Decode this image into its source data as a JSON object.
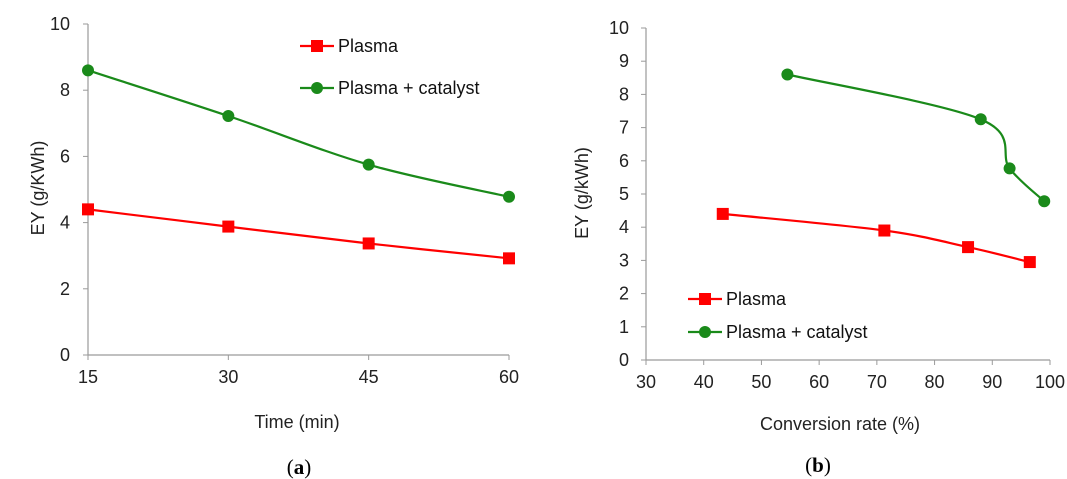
{
  "chart_data": [
    {
      "type": "line",
      "caption": {
        "open": "(",
        "letter": "a",
        "close": ")"
      },
      "xlabel": "Time (min)",
      "ylabel": "EY (g/KWh)",
      "xlim": [
        15,
        60
      ],
      "ylim": [
        0,
        10
      ],
      "xticks": [
        15,
        30,
        45,
        60
      ],
      "yticks": [
        0,
        2,
        4,
        6,
        8,
        10
      ],
      "legend_position": "top-right",
      "series": [
        {
          "name": "Plasma",
          "color": "#ff0000",
          "marker": "square",
          "x": [
            15,
            30,
            45,
            60
          ],
          "y": [
            4.4,
            3.88,
            3.37,
            2.92
          ]
        },
        {
          "name": "Plasma + catalyst",
          "color": "#1a8a1a",
          "marker": "circle",
          "x": [
            15,
            30,
            45,
            60
          ],
          "y": [
            8.6,
            7.22,
            5.75,
            4.78
          ]
        }
      ]
    },
    {
      "type": "line",
      "caption": {
        "open": "(",
        "letter": "b",
        "close": ")"
      },
      "xlabel": "Conversion rate (%)",
      "ylabel": "EY (g/kWh)",
      "xlim": [
        30,
        100
      ],
      "ylim": [
        0,
        10
      ],
      "xticks": [
        30,
        40,
        50,
        60,
        70,
        80,
        90,
        100
      ],
      "yticks": [
        0,
        1,
        2,
        3,
        4,
        5,
        6,
        7,
        8,
        9,
        10
      ],
      "legend_position": "bottom-left",
      "series": [
        {
          "name": "Plasma",
          "color": "#ff0000",
          "marker": "square",
          "x": [
            43.3,
            71.3,
            85.8,
            96.5
          ],
          "y": [
            4.4,
            3.9,
            3.4,
            2.95
          ]
        },
        {
          "name": "Plasma + catalyst",
          "color": "#1a8a1a",
          "marker": "circle",
          "x": [
            54.5,
            88.0,
            93.0,
            99.0
          ],
          "y": [
            8.6,
            7.25,
            5.77,
            4.78
          ]
        }
      ]
    }
  ]
}
